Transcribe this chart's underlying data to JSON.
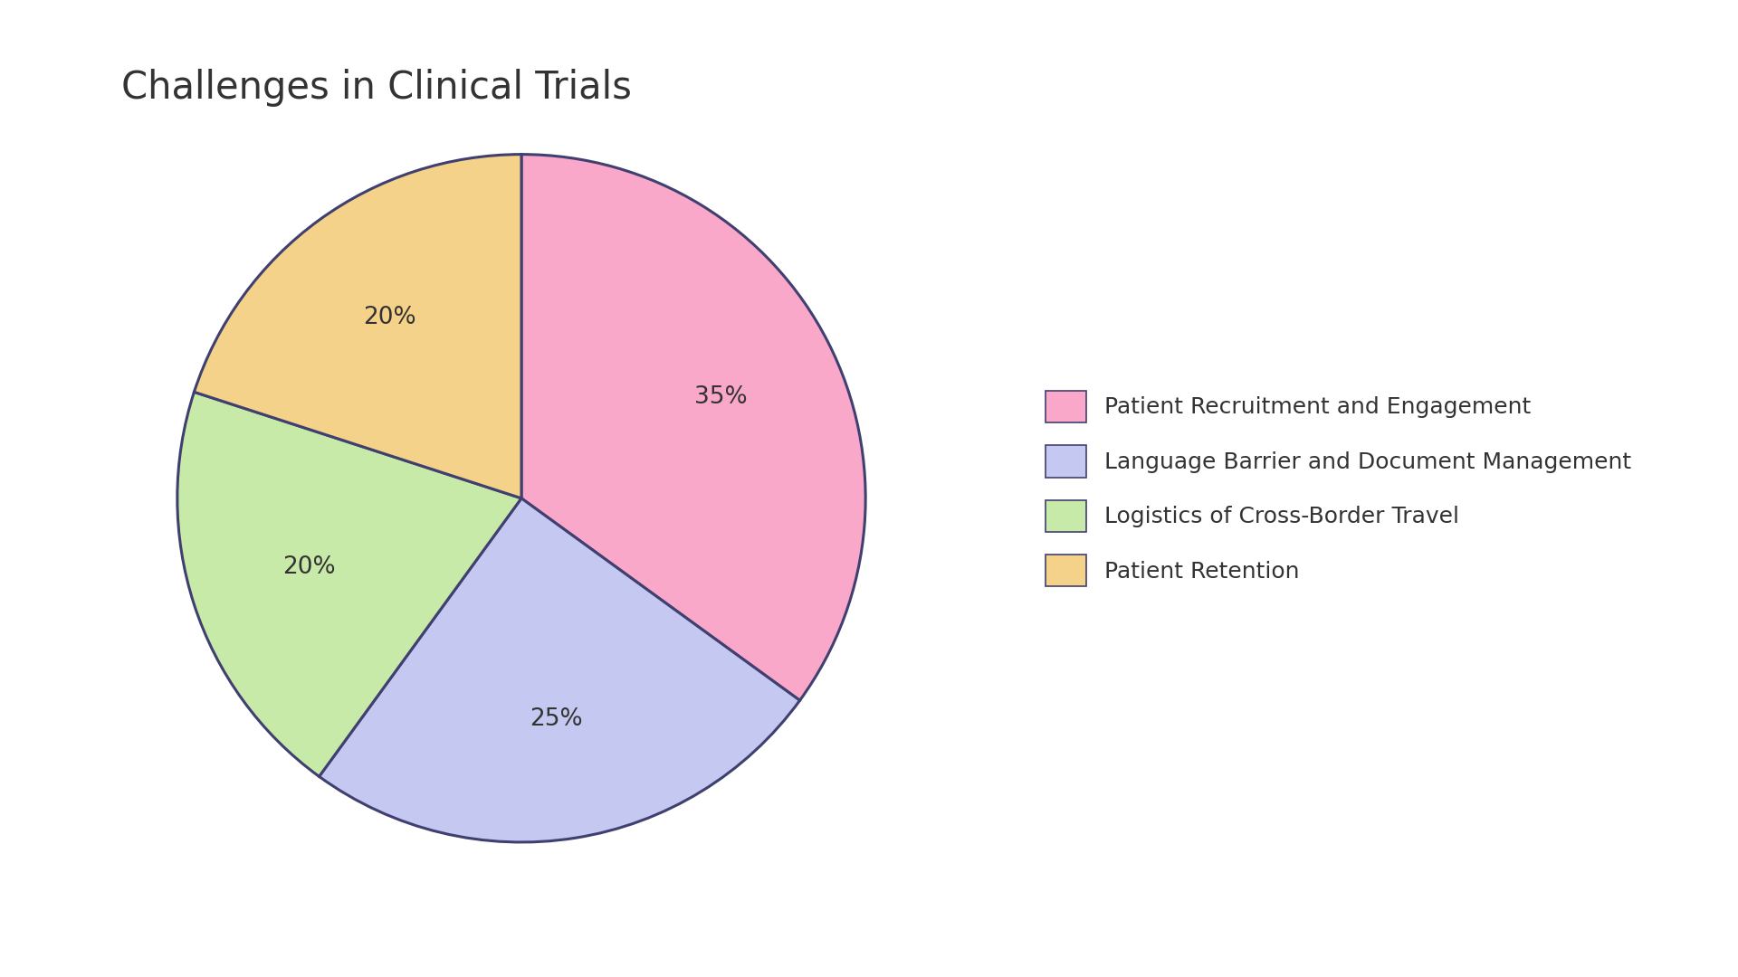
{
  "title": "Challenges in Clinical Trials",
  "labels": [
    "Patient Recruitment and Engagement",
    "Language Barrier and Document Management",
    "Logistics of Cross-Border Travel",
    "Patient Retention"
  ],
  "values": [
    35,
    25,
    20,
    20
  ],
  "colors": [
    "#F9A8C9",
    "#C5C8F0",
    "#C8EAA8",
    "#F5D28A"
  ],
  "edge_color": "#404070",
  "text_color": "#333333",
  "background_color": "#FFFFFF",
  "title_fontsize": 30,
  "pct_fontsize": 19,
  "legend_fontsize": 18,
  "startangle": 90
}
